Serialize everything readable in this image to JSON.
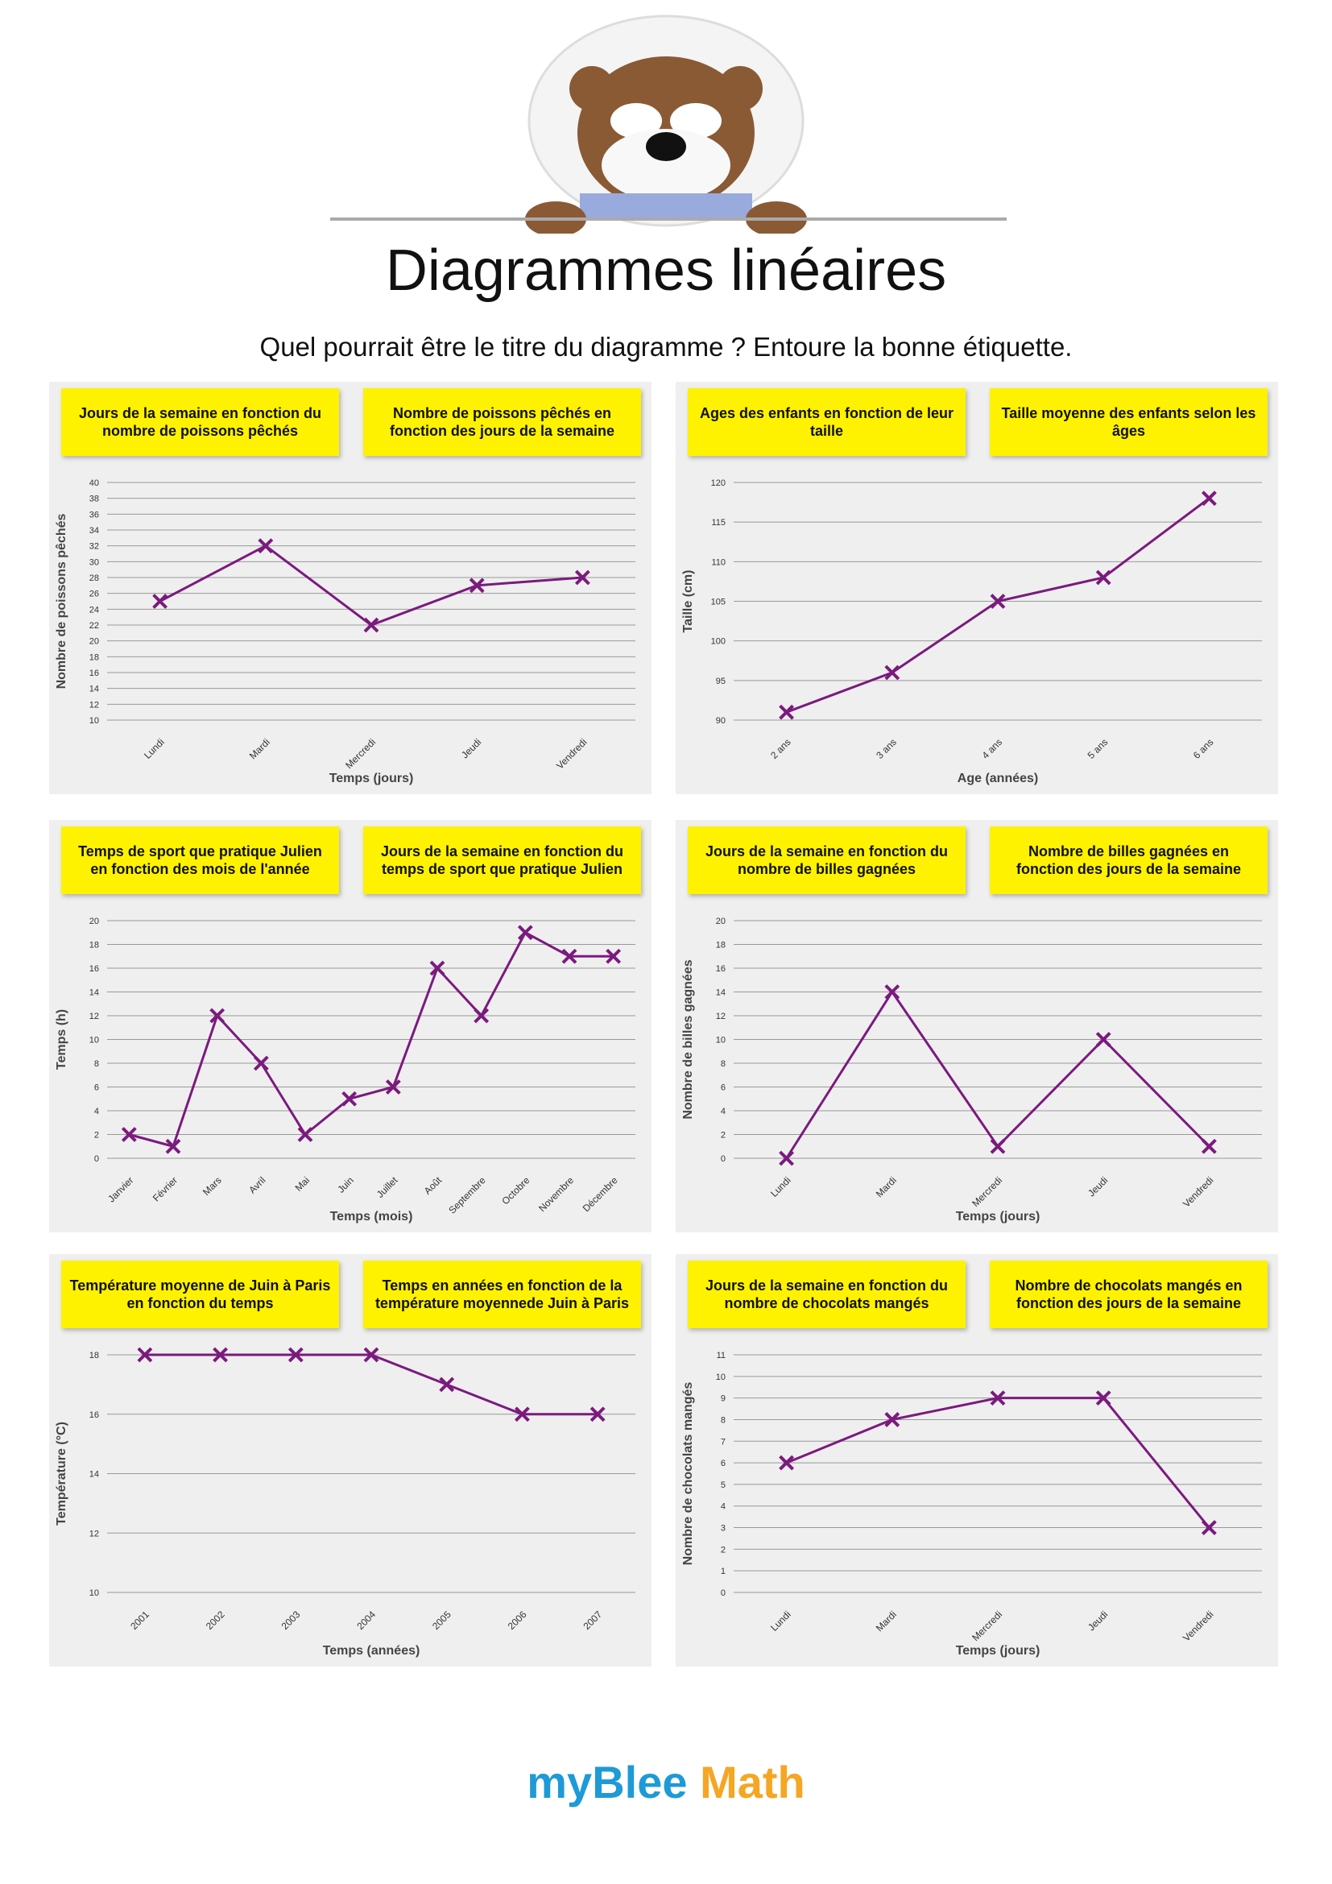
{
  "header": {
    "title": "Diagrammes linéaires",
    "subtitle": "Quel pourrait être le titre du diagramme ? Entoure la bonne étiquette."
  },
  "chart_data": [
    {
      "type": "line",
      "options": [
        "Jours de la semaine en fonction du nombre de poissons pêchés",
        "Nombre de poissons pêchés en fonction des jours de la semaine"
      ],
      "categories": [
        "Lundi",
        "Mardi",
        "Mercredi",
        "Jeudi",
        "Vendredi"
      ],
      "values": [
        25,
        32,
        22,
        27,
        28
      ],
      "color": "#7b1a7e",
      "ylim": [
        10,
        40
      ],
      "yticks": [
        10,
        12,
        14,
        16,
        18,
        20,
        22,
        24,
        26,
        28,
        30,
        32,
        34,
        36,
        38,
        40
      ],
      "ylabel": "Nombre de poissons pêchés",
      "xlabel": "Temps (jours)",
      "grid": true
    },
    {
      "type": "line",
      "options": [
        "Ages des enfants en fonction de leur taille",
        "Taille moyenne des enfants selon les âges"
      ],
      "categories": [
        "2 ans",
        "3 ans",
        "4 ans",
        "5 ans",
        "6 ans"
      ],
      "values": [
        91,
        96,
        105,
        108,
        118
      ],
      "color": "#7b1a7e",
      "ylim": [
        90,
        120
      ],
      "yticks": [
        90,
        95,
        100,
        105,
        110,
        115,
        120
      ],
      "ylabel": "Taille (cm)",
      "xlabel": "Age (années)",
      "grid": true
    },
    {
      "type": "line",
      "options": [
        "Temps de sport que pratique Julien en fonction des mois de l'année",
        "Jours de la semaine en fonction du temps de sport que pratique Julien"
      ],
      "categories": [
        "Janvier",
        "Février",
        "Mars",
        "Avril",
        "Mai",
        "Juin",
        "Juillet",
        "Août",
        "Septembre",
        "Octobre",
        "Novembre",
        "Décembre"
      ],
      "values": [
        2,
        1,
        12,
        8,
        2,
        5,
        6,
        16,
        12,
        19,
        17,
        17
      ],
      "color": "#7b1a7e",
      "ylim": [
        0,
        20
      ],
      "yticks": [
        0,
        2,
        4,
        6,
        8,
        10,
        12,
        14,
        16,
        18,
        20
      ],
      "ylabel": "Temps (h)",
      "xlabel": "Temps (mois)",
      "grid": true
    },
    {
      "type": "line",
      "options": [
        "Jours de la semaine en fonction du nombre de billes gagnées",
        "Nombre de billes gagnées en fonction des jours de la semaine"
      ],
      "categories": [
        "Lundi",
        "Mardi",
        "Mercredi",
        "Jeudi",
        "Vendredi"
      ],
      "values": [
        0,
        14,
        1,
        10,
        1
      ],
      "color": "#7b1a7e",
      "ylim": [
        0,
        20
      ],
      "yticks": [
        0,
        2,
        4,
        6,
        8,
        10,
        12,
        14,
        16,
        18,
        20
      ],
      "ylabel": "Nombre de billes gagnées",
      "xlabel": "Temps (jours)",
      "grid": true
    },
    {
      "type": "line",
      "options": [
        "Température moyenne de Juin à Paris en fonction du temps",
        "Temps en années en fonction de la température moyennede Juin à Paris"
      ],
      "categories": [
        "2001",
        "2002",
        "2003",
        "2004",
        "2005",
        "2006",
        "2007"
      ],
      "values": [
        18,
        18,
        18,
        18,
        17,
        16,
        16
      ],
      "color": "#7b1a7e",
      "ylim": [
        10,
        18
      ],
      "yticks": [
        10,
        12,
        14,
        16,
        18
      ],
      "ylabel": "Température (°C)",
      "xlabel": "Temps (années)",
      "grid": true
    },
    {
      "type": "line",
      "options": [
        "Jours de la semaine en fonction du nombre de chocolats mangés",
        "Nombre de chocolats mangés en fonction des jours de la semaine"
      ],
      "categories": [
        "Lundi",
        "Mardi",
        "Mercredi",
        "Jeudi",
        "Vendredi"
      ],
      "values": [
        6,
        8,
        9,
        9,
        3
      ],
      "color": "#7b1a7e",
      "ylim": [
        0,
        11
      ],
      "yticks": [
        0,
        1,
        2,
        3,
        4,
        5,
        6,
        7,
        8,
        9,
        10,
        11
      ],
      "ylabel": "Nombre de chocolats mangés",
      "xlabel": "Temps (jours)",
      "grid": true
    }
  ],
  "footer": {
    "brand": "myBlee",
    "brand2": "Math"
  }
}
